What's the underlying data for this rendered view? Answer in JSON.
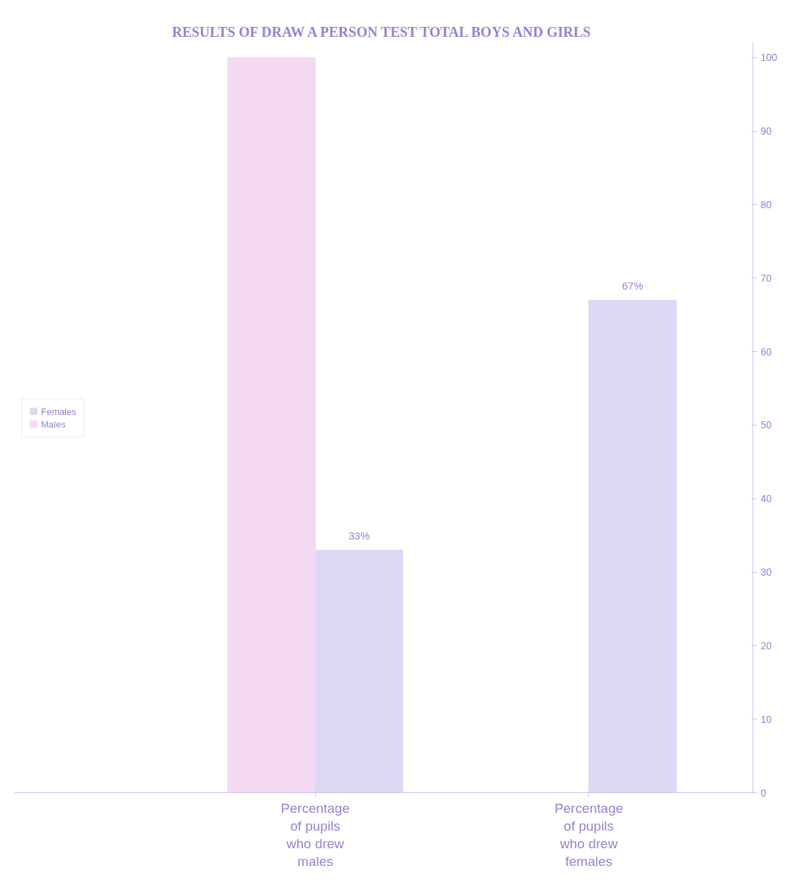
{
  "chart_data": {
    "type": "bar",
    "title": "RESULTS OF DRAW A PERSON TEST TOTAL BOYS AND GIRLS",
    "categories": [
      "Percentage of pupils who drew males",
      "Percentage of pupils who drew females"
    ],
    "series": [
      {
        "name": "Females",
        "color": "#dcd8f6",
        "values": [
          33,
          67
        ],
        "value_labels": [
          "33%",
          "67%"
        ]
      },
      {
        "name": "Males",
        "color": "#f4d8f2",
        "values": [
          100,
          0
        ],
        "value_labels": [
          null,
          null
        ]
      }
    ],
    "ylim": [
      0,
      102
    ],
    "yticks": [
      0,
      10,
      20,
      30,
      40,
      50,
      60,
      70,
      80,
      90,
      100
    ],
    "grid": false,
    "legend": "left"
  }
}
